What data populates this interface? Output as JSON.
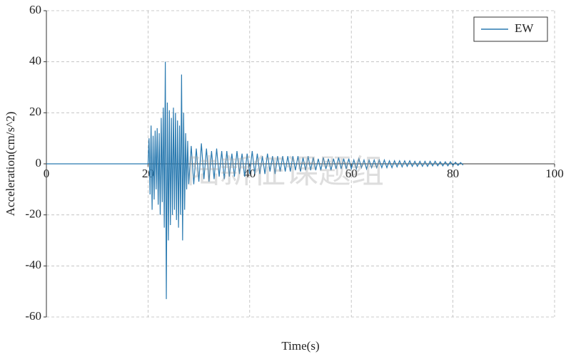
{
  "chart_data": {
    "type": "line",
    "x_label": "Time(s)",
    "y_label": "Acceleration(cm/s^2)",
    "watermark": "陆新征课题组",
    "xlim": [
      0,
      100
    ],
    "xticks": [
      0,
      20,
      40,
      60,
      80,
      100
    ],
    "ylim": [
      -60,
      60
    ],
    "yticks": [
      -60,
      -40,
      -20,
      0,
      20,
      40,
      60
    ],
    "grid": true,
    "legend": "upper right",
    "x": [
      0,
      19.9,
      20.0,
      20.2,
      20.4,
      20.6,
      20.8,
      21.0,
      21.2,
      21.4,
      21.6,
      21.8,
      22.0,
      22.2,
      22.4,
      22.6,
      22.8,
      23.0,
      23.2,
      23.4,
      23.6,
      23.8,
      24.0,
      24.2,
      24.4,
      24.6,
      24.8,
      25.0,
      25.2,
      25.4,
      25.6,
      25.8,
      26.0,
      26.2,
      26.4,
      26.6,
      26.8,
      27.0,
      27.2,
      27.4,
      27.6,
      27.8,
      28.0,
      28.5,
      29,
      29.5,
      30,
      30.5,
      31,
      31.5,
      32,
      32.5,
      33,
      33.5,
      34,
      34.5,
      35,
      35.5,
      36,
      36.5,
      37,
      37.5,
      38,
      38.5,
      39,
      39.5,
      40,
      40.5,
      41,
      41.5,
      42,
      42.5,
      43,
      43.5,
      44,
      44.5,
      45,
      45.5,
      46,
      46.5,
      47,
      47.5,
      48,
      48.5,
      49,
      49.5,
      50,
      50.5,
      51,
      51.5,
      52,
      52.5,
      53,
      53.5,
      54,
      54.5,
      55,
      55.5,
      56,
      56.5,
      57,
      57.5,
      58,
      58.5,
      59,
      59.5,
      60,
      60.5,
      61,
      61.5,
      62,
      62.5,
      63,
      63.5,
      64,
      64.5,
      65,
      65.5,
      66,
      66.5,
      67,
      67.5,
      68,
      68.5,
      69,
      69.5,
      70,
      70.5,
      71,
      71.5,
      72,
      72.5,
      73,
      73.5,
      74,
      74.5,
      75,
      75.5,
      76,
      76.5,
      77,
      77.5,
      78,
      78.5,
      79,
      79.5,
      80,
      80.5,
      81,
      81.5,
      82
    ],
    "series": [
      {
        "name": "EW",
        "color": "#2a7ab0",
        "values": [
          0,
          0,
          0,
          10,
          -12,
          15,
          -18,
          11,
          -14,
          13,
          -10,
          14,
          -16,
          12,
          -20,
          18,
          -15,
          22,
          -25,
          40,
          -53,
          24,
          -30,
          21,
          -24,
          18,
          -20,
          22,
          -18,
          20,
          -22,
          17,
          -25,
          15,
          -20,
          35,
          -30,
          20,
          -18,
          12,
          -10,
          9,
          -8,
          7,
          -8,
          6,
          -7,
          8,
          -6,
          6,
          -7,
          5,
          -6,
          6,
          -5,
          5,
          -6,
          5,
          -5,
          4,
          -5,
          5,
          -4,
          4,
          -5,
          4,
          -4,
          5,
          -4,
          4,
          -4,
          3,
          -4,
          4,
          -3,
          3,
          -4,
          3,
          -3,
          3,
          -3,
          3,
          -3,
          3,
          -2.5,
          3,
          -3,
          2.5,
          -2.5,
          3,
          -2.5,
          2.5,
          -2.5,
          2,
          -2.5,
          2.5,
          -2,
          2,
          -2.5,
          2,
          -2,
          2.5,
          -2,
          2,
          -2,
          2,
          -2,
          1.5,
          -2,
          2,
          -1.5,
          1.5,
          -2,
          1.5,
          -1.5,
          1.5,
          -1.5,
          1.5,
          -1.5,
          1.5,
          -1.5,
          1.2,
          -1.5,
          1.2,
          -1.2,
          1.2,
          -1.2,
          1.2,
          -1,
          1.2,
          -1,
          1,
          -1,
          1,
          -1,
          1,
          -1,
          1,
          -0.8,
          1,
          -0.8,
          0.8,
          -0.8,
          0.8,
          -0.8,
          0.8,
          -0.6,
          0.6,
          -0.6,
          0.5,
          -0.5
        ]
      }
    ]
  }
}
